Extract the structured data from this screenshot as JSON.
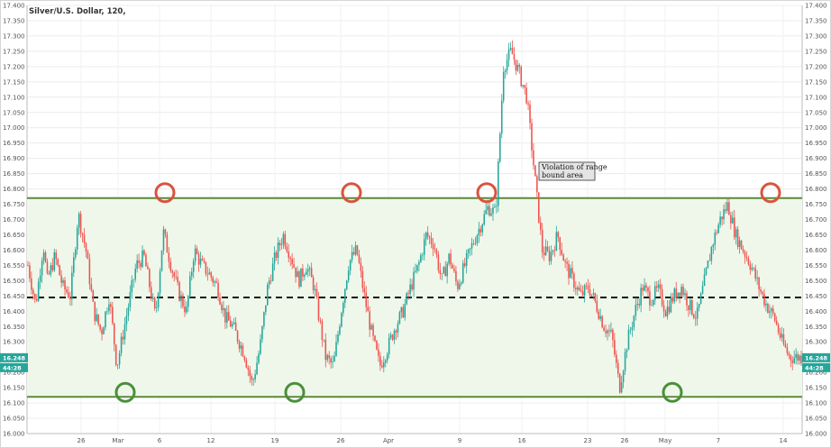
{
  "chart_data": {
    "type": "candlestick",
    "title": "Silver/U.S. Dollar, 120,",
    "ylim": [
      16.0,
      17.4
    ],
    "y_ticks": [
      "16.000",
      "16.050",
      "16.100",
      "16.150",
      "16.200",
      "16.250",
      "16.300",
      "16.350",
      "16.400",
      "16.450",
      "16.500",
      "16.550",
      "16.600",
      "16.650",
      "16.700",
      "16.750",
      "16.800",
      "16.850",
      "16.900",
      "16.950",
      "17.000",
      "17.050",
      "17.100",
      "17.150",
      "17.200",
      "17.250",
      "17.300",
      "17.350",
      "17.400"
    ],
    "x_ticks": [
      "26",
      "Mar",
      "6",
      "12",
      "19",
      "26",
      "Apr",
      "9",
      "16",
      "23",
      "26",
      "May",
      "7",
      "14"
    ],
    "last_price": "16.248",
    "countdown": "44:28",
    "upper_band": 16.77,
    "mid_line": 16.445,
    "lower_band": 16.12,
    "annotation": "Violation of range\nbound area",
    "colors": {
      "up": "#26a69a",
      "down": "#ef5350",
      "band_line": "#5a8a3a",
      "band_fill": "#eef7ea",
      "upper_circle": "#d9533d",
      "lower_circle": "#4a8f3a",
      "badge": "#26a69a"
    },
    "close_path": [
      [
        0.0,
        16.55
      ],
      [
        0.01,
        16.42
      ],
      [
        0.02,
        16.62
      ],
      [
        0.025,
        16.5
      ],
      [
        0.035,
        16.58
      ],
      [
        0.045,
        16.48
      ],
      [
        0.055,
        16.45
      ],
      [
        0.065,
        16.72
      ],
      [
        0.075,
        16.6
      ],
      [
        0.085,
        16.4
      ],
      [
        0.095,
        16.33
      ],
      [
        0.105,
        16.45
      ],
      [
        0.115,
        16.22
      ],
      [
        0.13,
        16.42
      ],
      [
        0.14,
        16.55
      ],
      [
        0.15,
        16.58
      ],
      [
        0.165,
        16.38
      ],
      [
        0.175,
        16.66
      ],
      [
        0.185,
        16.55
      ],
      [
        0.195,
        16.46
      ],
      [
        0.205,
        16.4
      ],
      [
        0.215,
        16.6
      ],
      [
        0.225,
        16.55
      ],
      [
        0.235,
        16.52
      ],
      [
        0.245,
        16.48
      ],
      [
        0.255,
        16.38
      ],
      [
        0.265,
        16.35
      ],
      [
        0.28,
        16.26
      ],
      [
        0.29,
        16.16
      ],
      [
        0.3,
        16.28
      ],
      [
        0.31,
        16.48
      ],
      [
        0.32,
        16.58
      ],
      [
        0.33,
        16.65
      ],
      [
        0.34,
        16.58
      ],
      [
        0.35,
        16.5
      ],
      [
        0.36,
        16.55
      ],
      [
        0.37,
        16.48
      ],
      [
        0.375,
        16.4
      ],
      [
        0.385,
        16.25
      ],
      [
        0.395,
        16.22
      ],
      [
        0.405,
        16.4
      ],
      [
        0.415,
        16.56
      ],
      [
        0.425,
        16.6
      ],
      [
        0.435,
        16.45
      ],
      [
        0.445,
        16.32
      ],
      [
        0.455,
        16.22
      ],
      [
        0.465,
        16.28
      ],
      [
        0.475,
        16.35
      ],
      [
        0.485,
        16.4
      ],
      [
        0.495,
        16.48
      ],
      [
        0.505,
        16.55
      ],
      [
        0.515,
        16.65
      ],
      [
        0.525,
        16.62
      ],
      [
        0.535,
        16.5
      ],
      [
        0.545,
        16.58
      ],
      [
        0.555,
        16.48
      ],
      [
        0.565,
        16.55
      ],
      [
        0.575,
        16.62
      ],
      [
        0.585,
        16.68
      ],
      [
        0.595,
        16.74
      ],
      [
        0.605,
        16.72
      ],
      [
        0.615,
        17.2
      ],
      [
        0.625,
        17.25
      ],
      [
        0.635,
        17.18
      ],
      [
        0.645,
        17.1
      ],
      [
        0.655,
        16.85
      ],
      [
        0.665,
        16.6
      ],
      [
        0.675,
        16.58
      ],
      [
        0.685,
        16.65
      ],
      [
        0.695,
        16.55
      ],
      [
        0.705,
        16.5
      ],
      [
        0.715,
        16.45
      ],
      [
        0.725,
        16.48
      ],
      [
        0.735,
        16.42
      ],
      [
        0.745,
        16.35
      ],
      [
        0.755,
        16.32
      ],
      [
        0.765,
        16.15
      ],
      [
        0.775,
        16.3
      ],
      [
        0.785,
        16.4
      ],
      [
        0.795,
        16.48
      ],
      [
        0.805,
        16.44
      ],
      [
        0.815,
        16.47
      ],
      [
        0.825,
        16.4
      ],
      [
        0.835,
        16.45
      ],
      [
        0.845,
        16.48
      ],
      [
        0.855,
        16.42
      ],
      [
        0.865,
        16.38
      ],
      [
        0.875,
        16.5
      ],
      [
        0.885,
        16.62
      ],
      [
        0.895,
        16.7
      ],
      [
        0.905,
        16.75
      ],
      [
        0.915,
        16.65
      ],
      [
        0.925,
        16.6
      ],
      [
        0.935,
        16.55
      ],
      [
        0.945,
        16.48
      ],
      [
        0.955,
        16.42
      ],
      [
        0.965,
        16.38
      ],
      [
        0.975,
        16.3
      ],
      [
        0.985,
        16.25
      ],
      [
        1.0,
        16.25
      ]
    ]
  }
}
